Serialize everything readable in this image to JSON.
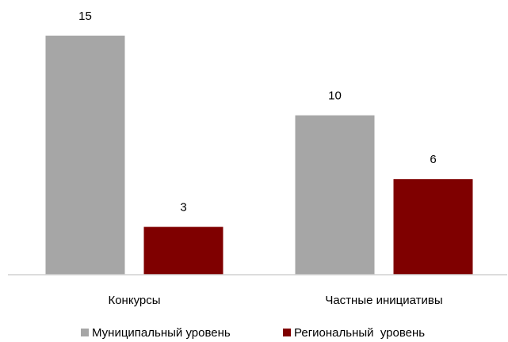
{
  "chart_data": {
    "type": "bar",
    "categories": [
      "Конкурсы",
      "Частные инициативы"
    ],
    "series": [
      {
        "name": "Муниципальный уровень",
        "color": "#a6a6a6",
        "values": [
          15,
          10
        ]
      },
      {
        "name": "Региональный  уровень",
        "color": "#7f0000",
        "values": [
          3,
          6
        ]
      }
    ],
    "ylim": [
      0,
      15
    ]
  }
}
